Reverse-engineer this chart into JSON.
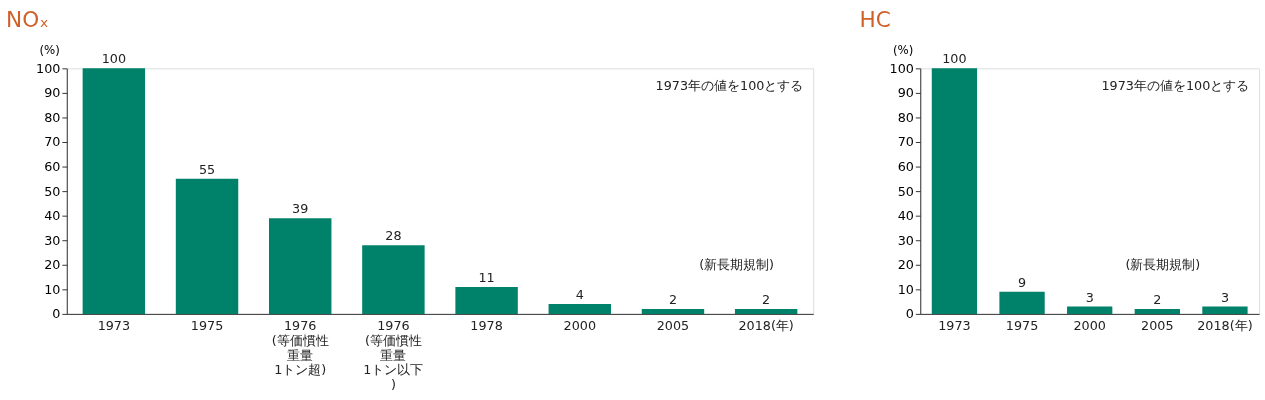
{
  "chart_data": [
    {
      "type": "bar",
      "title": "NOₓ",
      "ylabel": "(%)",
      "categories": [
        "1973",
        "1975",
        "1976\n(等価慣性重量1トン超)",
        "1976\n(等価慣性重量1トン以下)",
        "1978",
        "2000",
        "2005",
        "2018(年)"
      ],
      "values": [
        100,
        55,
        39,
        28,
        11,
        4,
        2,
        2
      ],
      "color": "#00826a",
      "ylim": [
        0,
        100
      ],
      "yticks": [
        0,
        10,
        20,
        30,
        40,
        50,
        60,
        70,
        80,
        90,
        100
      ],
      "data_labels": true,
      "grid": false,
      "annotations": [
        "1973年の値を100とする",
        "(新長期規制)"
      ]
    },
    {
      "type": "bar",
      "title": "HC",
      "ylabel": "(%)",
      "categories": [
        "1973",
        "1975",
        "2000",
        "2005",
        "2018(年)"
      ],
      "values": [
        100,
        9,
        3,
        2,
        3
      ],
      "color": "#00826a",
      "ylim": [
        0,
        100
      ],
      "yticks": [
        0,
        10,
        20,
        30,
        40,
        50,
        60,
        70,
        80,
        90,
        100
      ],
      "data_labels": true,
      "grid": false,
      "annotations": [
        "1973年の値を100とする",
        "(新長期規制)"
      ]
    }
  ]
}
